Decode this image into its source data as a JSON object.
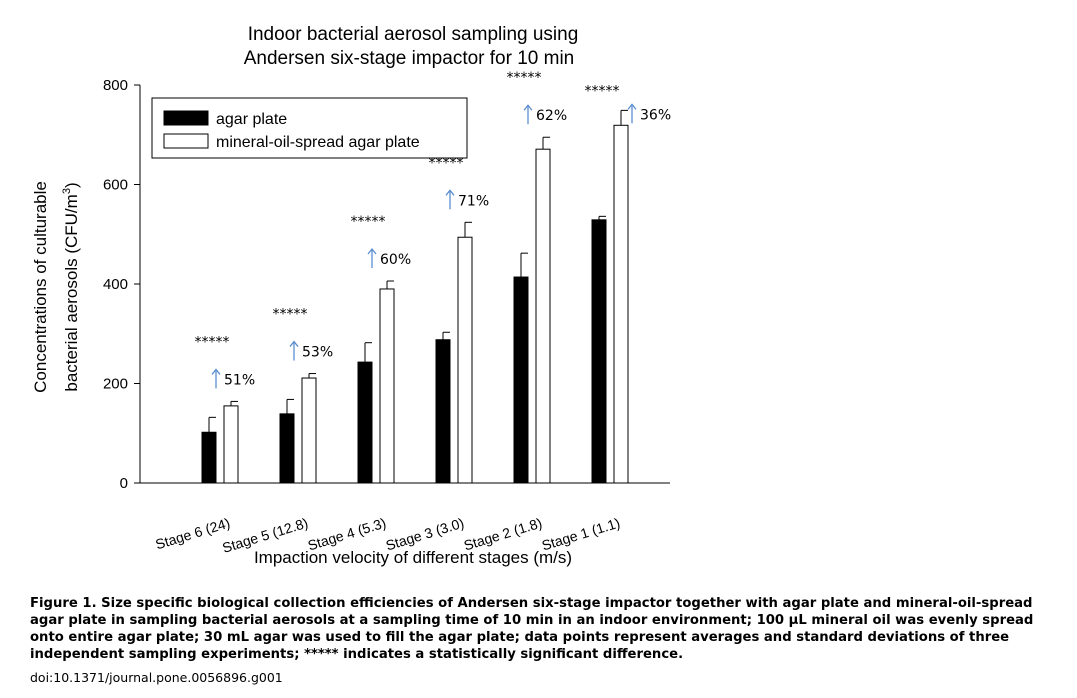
{
  "chart_data": {
    "type": "bar",
    "title_lines": [
      "Indoor bacterial aerosol sampling using",
      "Andersen six-stage impactor for 10 min"
    ],
    "xlabel": "Impaction velocity of different stages (m/s)",
    "ylabel_line1": "Concentrations of culturable",
    "ylabel_line2_prefix": "bacterial aerosols (CFU/m",
    "ylabel_line2_sup": "3",
    "ylabel_line2_suffix": ")",
    "ylim": [
      0,
      800
    ],
    "yticks": [
      "0",
      "200",
      "400",
      "600",
      "800"
    ],
    "categories": [
      "Stage 6 (24)",
      "Stage 5 (12.8)",
      "Stage 4 (5.3)",
      "Stage 3 (3.0)",
      "Stage 2 (1.8)",
      "Stage 1 (1.1)"
    ],
    "series": [
      {
        "name": "agar plate",
        "color": "#000000",
        "values": [
          102,
          139,
          243,
          288,
          414,
          529
        ],
        "errors": [
          30,
          29,
          39,
          15,
          48,
          7
        ]
      },
      {
        "name": "mineral-oil-spread agar plate",
        "color": "#ffffff",
        "values": [
          155,
          211,
          390,
          494,
          671,
          719
        ],
        "errors": [
          9,
          9,
          16,
          30,
          24,
          30
        ]
      }
    ],
    "significance": [
      "*****",
      "*****",
      "*****",
      "*****",
      "*****",
      "*****"
    ],
    "increase_labels": [
      "51%",
      "53%",
      "60%",
      "71%",
      "62%",
      "36%"
    ],
    "arrow_color": "#5b8ed1",
    "legend_position": "top-left",
    "grid": false
  },
  "caption": "Figure 1. Size specific biological collection efficiencies of Andersen six-stage impactor together with agar plate and mineral-oil-spread agar plate in sampling bacterial aerosols at a sampling time of 10 min in an indoor environment; 100 µL mineral oil was evenly spread onto entire agar plate; 30 mL agar was used to fill the agar plate; data points represent averages and standard deviations of three independent sampling experiments; ***** indicates a statistically significant difference.",
  "doi": "doi:10.1371/journal.pone.0056896.g001"
}
